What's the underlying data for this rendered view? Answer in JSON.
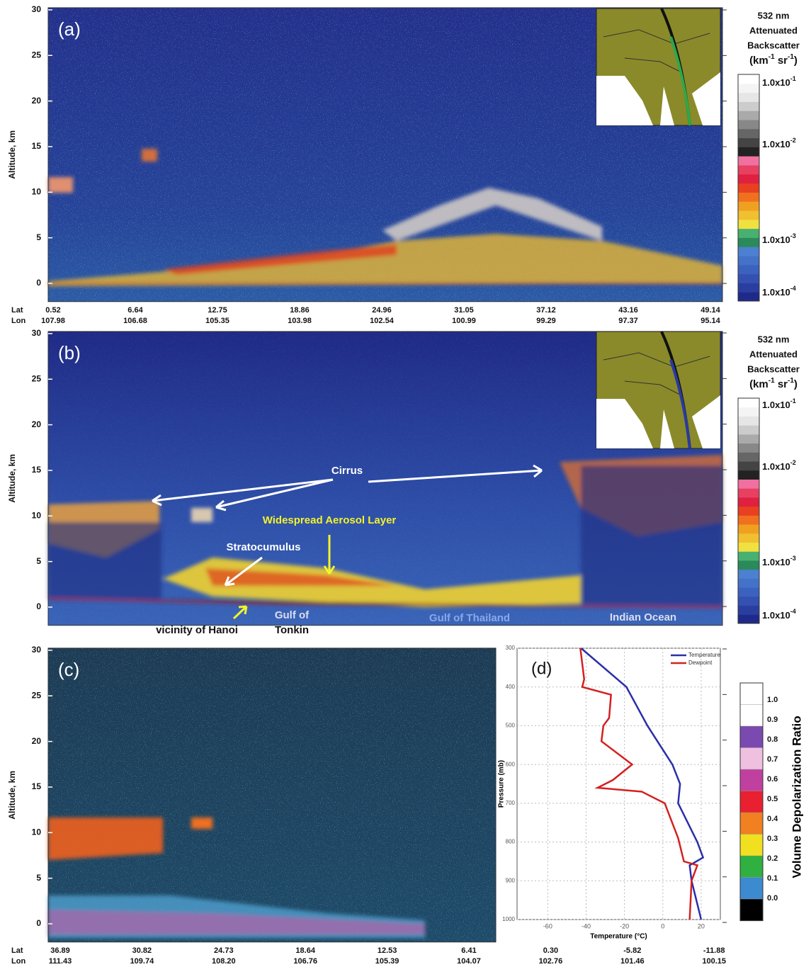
{
  "panels": [
    {
      "label": "(a)",
      "y_axis_label": "Altitude, km",
      "altitude_ticks": [
        0,
        5,
        10,
        15,
        20,
        25,
        30
      ],
      "lat_label": "Lat",
      "lon_label": "Lon",
      "lat": [
        "0.52",
        "6.64",
        "12.75",
        "18.86",
        "24.96",
        "31.05",
        "37.12",
        "43.16",
        "49.14"
      ],
      "lon": [
        "107.98",
        "106.68",
        "105.35",
        "103.98",
        "102.54",
        "100.99",
        "99.29",
        "97.37",
        "95.14"
      ]
    },
    {
      "label": "(b)",
      "y_axis_label": "Altitude, km",
      "altitude_ticks": [
        0,
        5,
        10,
        15,
        20,
        25,
        30
      ],
      "annotations": [
        "Cirrus",
        "Widespread Aerosol Layer",
        "Stratocumulus",
        "vicinity of Hanoi",
        "Gulf of",
        "Tonkin",
        "Gulf of Thailand",
        "Indian Ocean"
      ]
    },
    {
      "label": "(c)",
      "y_axis_label": "Altitude, km",
      "altitude_ticks": [
        0,
        5,
        10,
        15,
        20,
        25,
        30
      ],
      "lat_label": "Lat",
      "lon_label": "Lon",
      "lat": [
        "36.89",
        "30.82",
        "24.73",
        "18.64",
        "12.53",
        "6.41",
        "0.30",
        "-5.82",
        "-11.88"
      ],
      "lon": [
        "111.43",
        "109.74",
        "108.20",
        "106.76",
        "105.39",
        "104.07",
        "102.76",
        "101.46",
        "100.15"
      ]
    }
  ],
  "colorbars": [
    {
      "title": [
        "532 nm",
        "Attenuated",
        "Backscatter"
      ],
      "units": [
        "(km",
        "-1",
        " sr",
        "-1",
        ")"
      ],
      "ticks": [
        [
          "1.0x10",
          "-1"
        ],
        [
          "1.0x10",
          "-2"
        ],
        [
          "1.0x10",
          "-3"
        ],
        [
          "1.0x10",
          "-4"
        ]
      ]
    },
    {
      "title": [
        "532 nm",
        "Attenuated",
        "Backscatter"
      ],
      "units": [
        "(km",
        "-1",
        " sr",
        "-1",
        ")"
      ],
      "ticks": [
        [
          "1.0x10",
          "-1"
        ],
        [
          "1.0x10",
          "-2"
        ],
        [
          "1.0x10",
          "-3"
        ],
        [
          "1.0x10",
          "-4"
        ]
      ]
    },
    {
      "title": "Volume Depolarization Ratio",
      "ticks": [
        "1.0",
        "0.9",
        "0.8",
        "0.7",
        "0.6",
        "0.5",
        "0.4",
        "0.3",
        "0.2",
        "0.1",
        "0.0"
      ]
    }
  ],
  "chart_data": {
    "type": "line",
    "title": "(d)",
    "x_label": "Temperature (°C)",
    "y_label": "Pressure (mb)",
    "xlim": [
      -76,
      30
    ],
    "xticks": [
      -60,
      -40,
      -20,
      0,
      20
    ],
    "ylim": [
      1000,
      300
    ],
    "yticks": [
      300,
      400,
      500,
      600,
      700,
      800,
      900,
      1000
    ],
    "y_inverted": true,
    "legend": "upper right",
    "grid": true,
    "series": [
      {
        "name": "Temperature",
        "color": "#2b2fa8",
        "pressure": [
          300,
          400,
          500,
          600,
          650,
          700,
          800,
          840,
          860,
          900,
          1000
        ],
        "values": [
          -42.6,
          -19,
          -8,
          5,
          9,
          8,
          18,
          21,
          14,
          15,
          20
        ]
      },
      {
        "name": "Dewpoint",
        "color": "#d42020",
        "pressure": [
          300,
          380,
          400,
          420,
          480,
          500,
          540,
          600,
          640,
          660,
          670,
          700,
          790,
          850,
          860,
          900,
          1000
        ],
        "values": [
          -43,
          -41,
          -42,
          -27,
          -28,
          -31,
          -32,
          -16,
          -26,
          -34,
          -11,
          1,
          8,
          11,
          18,
          15,
          14
        ]
      }
    ]
  }
}
